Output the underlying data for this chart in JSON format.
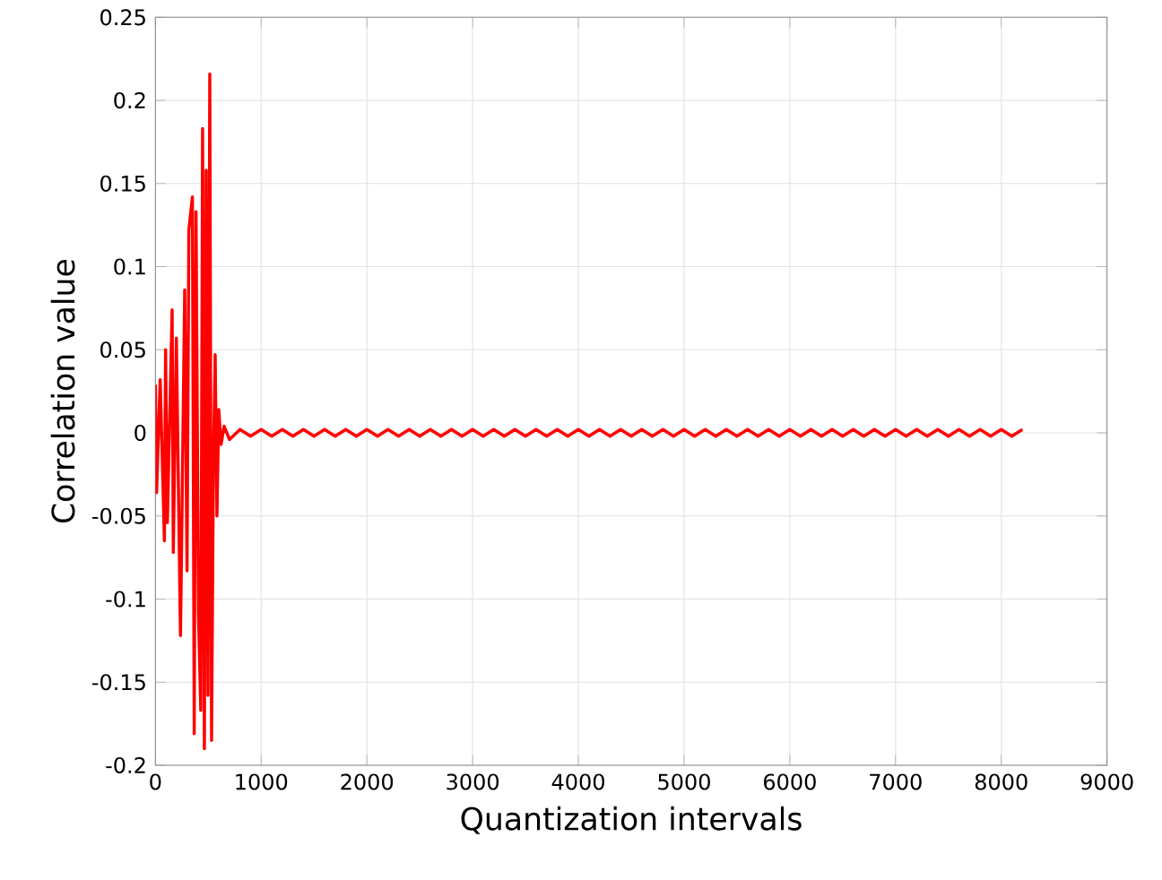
{
  "chart_data": {
    "type": "line",
    "xlabel": "Quantization intervals",
    "ylabel": "Correlation value",
    "xlim": [
      0,
      9000
    ],
    "ylim": [
      -0.2,
      0.25
    ],
    "xticks": [
      0,
      1000,
      2000,
      3000,
      4000,
      5000,
      6000,
      7000,
      8000,
      9000
    ],
    "yticks": [
      -0.2,
      -0.15,
      -0.1,
      -0.05,
      0,
      0.05,
      0.1,
      0.15,
      0.2,
      0.25
    ],
    "grid": true,
    "marker": "none",
    "line_style": "solid",
    "series": [
      {
        "color": "#ff0000",
        "x": [
          0,
          11,
          45,
          85,
          96,
          113,
          158,
          169,
          198,
          237,
          277,
          299,
          316,
          350,
          367,
          384,
          407,
          429,
          446,
          463,
          480,
          497,
          514,
          531,
          548,
          565,
          582,
          599,
          621,
          650,
          700,
          800,
          900,
          1000,
          1100,
          1200,
          1300,
          1400,
          1500,
          1600,
          1700,
          1800,
          1900,
          2000,
          2100,
          2200,
          2300,
          2400,
          2500,
          2600,
          2700,
          2800,
          2900,
          3000,
          3100,
          3200,
          3300,
          3400,
          3500,
          3600,
          3700,
          3800,
          3900,
          4000,
          4100,
          4200,
          4300,
          4400,
          4500,
          4600,
          4700,
          4800,
          4900,
          5000,
          5100,
          5200,
          5300,
          5400,
          5500,
          5600,
          5700,
          5800,
          5900,
          6000,
          6100,
          6200,
          6300,
          6400,
          6500,
          6600,
          6700,
          6800,
          6900,
          7000,
          7100,
          7200,
          7300,
          7400,
          7500,
          7600,
          7700,
          7800,
          7900,
          8000,
          8100,
          8200
        ],
        "values": [
          0.029,
          -0.036,
          0.032,
          -0.065,
          0.05,
          -0.054,
          0.074,
          -0.072,
          0.057,
          -0.122,
          0.086,
          -0.083,
          0.122,
          0.142,
          -0.181,
          0.133,
          -0.108,
          -0.167,
          0.183,
          -0.19,
          0.158,
          -0.158,
          0.216,
          -0.185,
          -0.022,
          0.047,
          -0.05,
          0.014,
          -0.007,
          0.004,
          -0.004,
          0.002,
          -0.002,
          0.002,
          -0.002,
          0.002,
          -0.002,
          0.002,
          -0.002,
          0.002,
          -0.002,
          0.002,
          -0.002,
          0.002,
          -0.002,
          0.002,
          -0.002,
          0.002,
          -0.002,
          0.002,
          -0.002,
          0.002,
          -0.002,
          0.002,
          -0.002,
          0.002,
          -0.002,
          0.002,
          -0.002,
          0.002,
          -0.002,
          0.002,
          -0.002,
          0.002,
          -0.002,
          0.002,
          -0.002,
          0.002,
          -0.002,
          0.002,
          -0.002,
          0.002,
          -0.002,
          0.002,
          -0.002,
          0.002,
          -0.002,
          0.002,
          -0.002,
          0.002,
          -0.002,
          0.002,
          -0.002,
          0.002,
          -0.002,
          0.002,
          -0.002,
          0.002,
          -0.002,
          0.002,
          -0.002,
          0.002,
          -0.002,
          0.002,
          -0.002,
          0.002,
          -0.002,
          0.002,
          -0.002,
          0.002,
          -0.002,
          0.002,
          -0.002,
          0.002,
          -0.002,
          0.002
        ]
      }
    ]
  }
}
